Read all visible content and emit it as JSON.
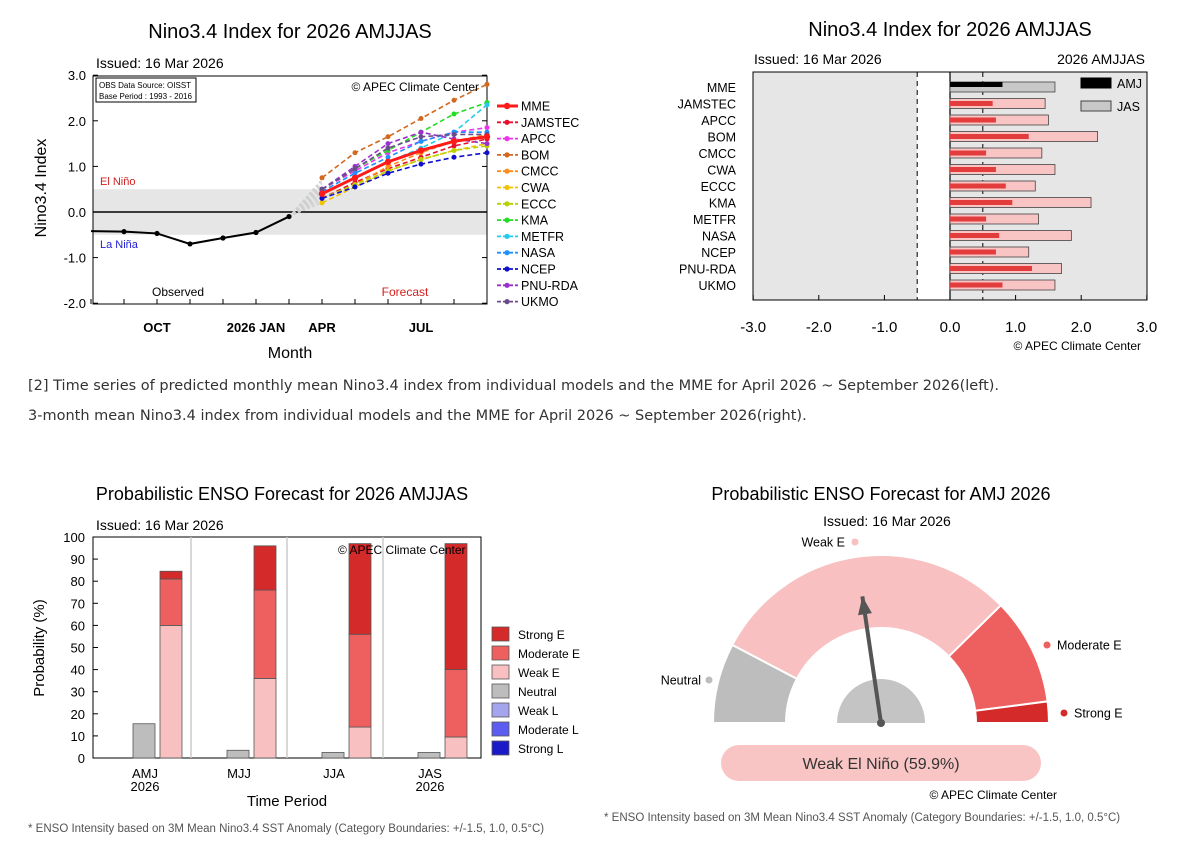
{
  "captions": {
    "line1": "[2] Time series of predicted monthly mean Nino3.4 index from individual models and the MME for April 2026 ~ September 2026(left).",
    "line2": "3-month mean Nino3.4 index from individual models and the MME for April 2026 ~ September 2026(right)."
  },
  "colors": {
    "weak_e": "#f8c0c0",
    "moderate_e": "#ee5f5f",
    "strong_e": "#d42a2a",
    "neutral": "#bdbdbd",
    "weak_l": "#a5a5ee",
    "moderate_l": "#5c5cf0",
    "strong_l": "#1a1ac8"
  },
  "chart_data": [
    {
      "type": "line",
      "title": "Nino3.4 Index for 2026 AMJJAS",
      "issued": "Issued: 16 Mar 2026",
      "source_note1": "OBS Data Source: OISST",
      "source_note2": "Base Period : 1993 - 2016",
      "copyright": "© APEC Climate Center",
      "xlabel": "Month",
      "ylabel": "Nino3.4 Index",
      "ylim": [
        -2.0,
        3.0
      ],
      "yticks": [
        "-2.0",
        "-1.0",
        "0.0",
        "1.0",
        "2.0",
        "3.0"
      ],
      "xtick_labels": [
        "OCT",
        "2026 JAN",
        "APR",
        "JUL"
      ],
      "el_nino_label": "El Niño",
      "la_nina_label": "La Niña",
      "observed_label": "Observed",
      "forecast_label": "Forecast",
      "observed": {
        "months": [
          -6,
          -5,
          -4,
          -3,
          -2,
          -1
        ],
        "values": [
          -0.43,
          -0.47,
          -0.7,
          -0.57,
          -0.45,
          -0.1
        ]
      },
      "forecast_months": [
        0,
        1,
        2,
        3,
        4,
        5
      ],
      "series": [
        {
          "name": "MME",
          "color": "#ff1a1a",
          "values": [
            0.4,
            0.75,
            1.1,
            1.35,
            1.55,
            1.65
          ]
        },
        {
          "name": "JAMSTEC",
          "color": "#e8102c",
          "values": [
            0.3,
            0.65,
            0.95,
            1.2,
            1.45,
            1.6
          ]
        },
        {
          "name": "APCC",
          "color": "#ee33ee",
          "values": [
            0.5,
            0.9,
            1.3,
            1.55,
            1.75,
            1.85
          ]
        },
        {
          "name": "BOM",
          "color": "#d2691e",
          "values": [
            0.75,
            1.3,
            1.65,
            2.05,
            2.45,
            2.8
          ]
        },
        {
          "name": "CMCC",
          "color": "#ff8c1a",
          "values": [
            0.3,
            0.6,
            1.0,
            1.3,
            1.55,
            1.7
          ]
        },
        {
          "name": "CWA",
          "color": "#f2c200",
          "values": [
            0.2,
            0.55,
            0.9,
            1.15,
            1.35,
            1.5
          ]
        },
        {
          "name": "ECCC",
          "color": "#b8d100",
          "values": [
            0.3,
            0.6,
            0.9,
            1.15,
            1.35,
            1.45
          ]
        },
        {
          "name": "KMA",
          "color": "#22dd22",
          "values": [
            0.5,
            0.95,
            1.35,
            1.75,
            2.15,
            2.4
          ]
        },
        {
          "name": "METFR",
          "color": "#22ccee",
          "values": [
            0.4,
            0.75,
            1.1,
            1.4,
            1.75,
            2.35
          ]
        },
        {
          "name": "NASA",
          "color": "#1e90ff",
          "values": [
            0.45,
            0.85,
            1.2,
            1.55,
            1.75,
            1.75
          ]
        },
        {
          "name": "NCEP",
          "color": "#1010cc",
          "values": [
            0.3,
            0.55,
            0.85,
            1.05,
            1.2,
            1.3
          ]
        },
        {
          "name": "PNU-RDA",
          "color": "#9932cc",
          "values": [
            0.5,
            1.0,
            1.5,
            1.75,
            1.6,
            1.5
          ]
        },
        {
          "name": "UKMO",
          "color": "#6b4c8a",
          "values": [
            0.5,
            0.95,
            1.4,
            1.65,
            1.7,
            1.7
          ]
        }
      ]
    },
    {
      "type": "bar",
      "orientation": "horizontal",
      "title": "Nino3.4 Index for 2026 AMJJAS",
      "issued": "Issued: 16 Mar 2026",
      "period_label": "2026 AMJJAS",
      "copyright": "© APEC Climate Center",
      "xlim": [
        -3.0,
        3.0
      ],
      "xticks": [
        "-3.0",
        "-2.0",
        "-1.0",
        "0.0",
        "1.0",
        "2.0",
        "3.0"
      ],
      "categories": [
        "MME",
        "JAMSTEC",
        "APCC",
        "BOM",
        "CMCC",
        "CWA",
        "ECCC",
        "KMA",
        "METFR",
        "NASA",
        "NCEP",
        "PNU-RDA",
        "UKMO"
      ],
      "series": [
        {
          "name": "AMJ",
          "values": [
            0.8,
            0.65,
            0.7,
            1.2,
            0.55,
            0.7,
            0.85,
            0.95,
            0.55,
            0.75,
            0.7,
            1.25,
            0.8
          ]
        },
        {
          "name": "JAS",
          "values": [
            1.6,
            1.45,
            1.5,
            2.25,
            1.4,
            1.6,
            1.3,
            2.15,
            1.35,
            1.85,
            1.2,
            1.7,
            1.6
          ]
        }
      ]
    },
    {
      "type": "bar",
      "stacked": true,
      "title": "Probabilistic ENSO Forecast for 2026 AMJJAS",
      "issued": "Issued: 16 Mar 2026",
      "copyright": "© APEC Climate Center",
      "xlabel": "Time Period",
      "ylabel": "Probability (%)",
      "ylim": [
        0,
        100
      ],
      "yticks": [
        "0",
        "10",
        "20",
        "30",
        "40",
        "50",
        "60",
        "70",
        "80",
        "90",
        "100"
      ],
      "categories": [
        {
          "label": "AMJ",
          "sub": "2026"
        },
        {
          "label": "MJJ",
          "sub": ""
        },
        {
          "label": "JJA",
          "sub": ""
        },
        {
          "label": "JAS",
          "sub": "2026"
        }
      ],
      "neutral": [
        15.5,
        3.5,
        2.5,
        2.5
      ],
      "weak_e": [
        60,
        36,
        14,
        9.5
      ],
      "moderate_e": [
        21,
        40,
        42,
        30.5
      ],
      "strong_e": [
        3.5,
        20,
        41,
        57
      ],
      "legend": [
        "Strong E",
        "Moderate E",
        "Weak E",
        "Neutral",
        "Weak L",
        "Moderate L",
        "Strong L"
      ],
      "footnote": "* ENSO Intensity based on 3M Mean Nino3.4 SST Anomaly (Category Boundaries: +/-1.5, 1.0, 0.5°C)"
    },
    {
      "type": "pie",
      "subtype": "gauge",
      "title": "Probabilistic ENSO Forecast for AMJ 2026",
      "issued": "Issued: 16 Mar 2026",
      "copyright": "© APEC Climate Center",
      "segments": [
        {
          "name": "Neutral",
          "value": 15.4
        },
        {
          "name": "Weak E",
          "value": 59.9
        },
        {
          "name": "Moderate E",
          "value": 20.6
        },
        {
          "name": "Strong E",
          "value": 4.1
        }
      ],
      "result": "Weak El Niño (59.9%)",
      "footnote": "* ENSO Intensity based on 3M Mean Nino3.4 SST Anomaly (Category Boundaries: +/-1.5, 1.0, 0.5°C)"
    }
  ]
}
